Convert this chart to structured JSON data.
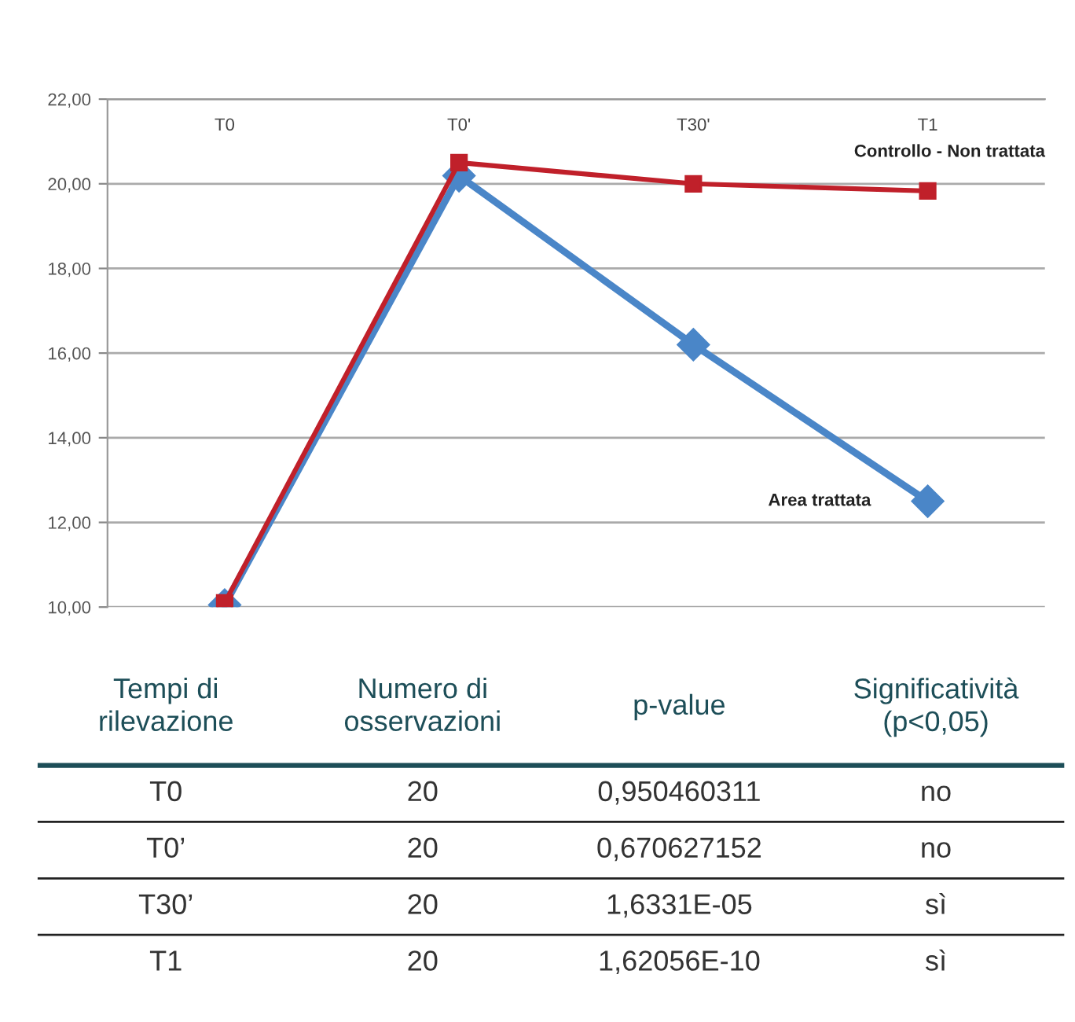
{
  "chart_data": [
    {
      "type": "line",
      "categories": [
        "T0",
        "T0'",
        "T30'",
        "T1"
      ],
      "series": [
        {
          "name": "Controllo - Non trattata",
          "color": "#c0202a",
          "marker": "square",
          "values": [
            10.1,
            20.5,
            20.0,
            19.83
          ]
        },
        {
          "name": "Area trattata",
          "color": "#4a86c8",
          "marker": "diamond",
          "values": [
            10.05,
            20.19,
            16.2,
            12.5
          ]
        }
      ],
      "ylim": [
        10,
        22
      ],
      "yticks": [
        {
          "value": 10,
          "label": "10,00"
        },
        {
          "value": 12,
          "label": "12,00"
        },
        {
          "value": 14,
          "label": "14,00"
        },
        {
          "value": 16,
          "label": "16,00"
        },
        {
          "value": 18,
          "label": "18,00"
        },
        {
          "value": 20,
          "label": "20,00"
        },
        {
          "value": 22,
          "label": "22,00"
        }
      ],
      "grid": "y",
      "legend": false
    },
    {
      "type": "other",
      "categories": [
        "Tempi di\nrilevazione",
        "Numero di\nosservazioni",
        "p-value",
        "Significatività\n(p<0,05)"
      ],
      "cell_labels": [
        [
          "T0",
          "20",
          "0,950460311",
          "no"
        ],
        [
          "T0’",
          "20",
          "0,670627152",
          "no"
        ],
        [
          "T30’",
          "20",
          "1,6331E-05",
          "sì"
        ],
        [
          "T1",
          "20",
          "1,62056E-10",
          "sì"
        ]
      ]
    }
  ]
}
